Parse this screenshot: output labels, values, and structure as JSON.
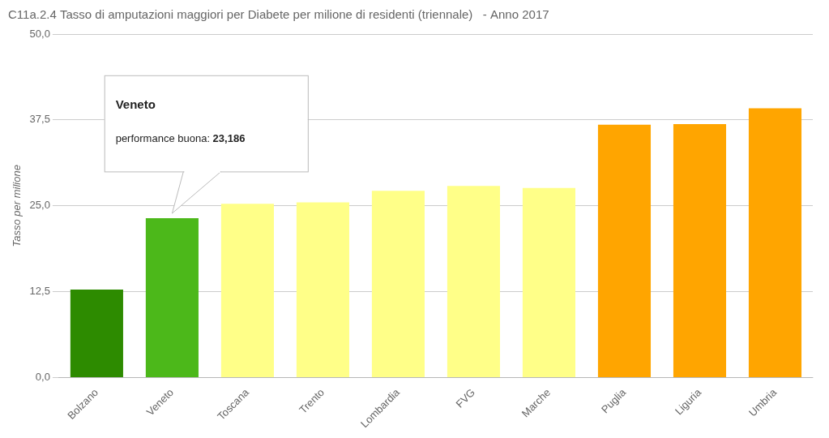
{
  "chart_data": {
    "type": "bar",
    "title": "C11a.2.4 Tasso di amputazioni maggiori per Diabete per milione di residenti (triennale)   - Anno 2017",
    "y_label": "Tasso per milione",
    "categories": [
      "Bolzano",
      "Veneto",
      "Toscana",
      "Trento",
      "Lombardia",
      "FVG",
      "Marche",
      "Puglia",
      "Liguria",
      "Umbria"
    ],
    "values": [
      12.8,
      23.2,
      25.3,
      25.5,
      27.2,
      27.9,
      27.6,
      36.8,
      36.9,
      39.2
    ],
    "colors": [
      "#2d8b00",
      "#4cb81a",
      "#ffff88",
      "#ffff88",
      "#ffff88",
      "#ffff88",
      "#ffff88",
      "#ffa500",
      "#ffa500",
      "#ffa500"
    ],
    "ylim": [
      0,
      50
    ],
    "yticks": [
      {
        "value": 0.0,
        "label": "0,0"
      },
      {
        "value": 12.5,
        "label": "12,5"
      },
      {
        "value": 25.0,
        "label": "25,0"
      },
      {
        "value": 37.5,
        "label": "37,5"
      },
      {
        "value": 50.0,
        "label": "50,0"
      }
    ],
    "grid": true,
    "annotations": [
      {
        "category": "Veneto",
        "title": "Veneto",
        "label": "performance buona: ",
        "value_text": "23,186"
      }
    ]
  }
}
